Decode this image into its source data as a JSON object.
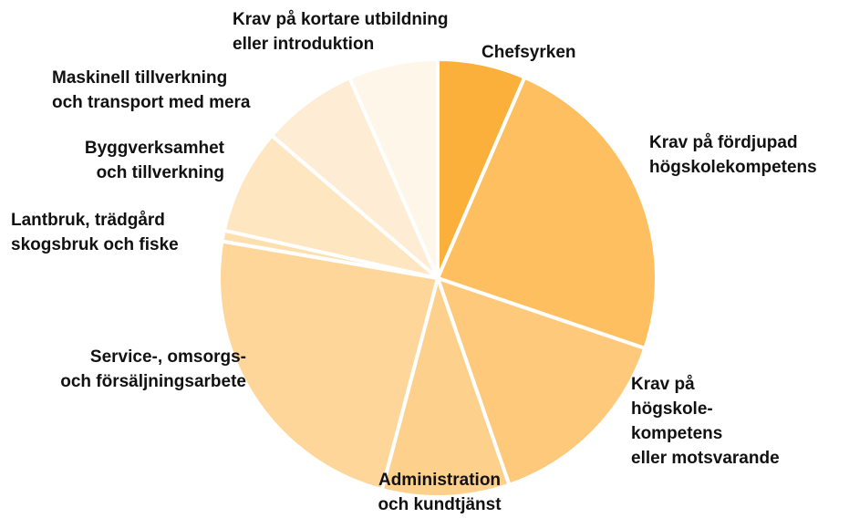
{
  "chart_data": {
    "type": "pie",
    "categories": [
      "Chefsyrken",
      "Krav på fördjupad\nhögskolekompetens",
      "Krav på\nhögskole-\nkompetens\neller motsvarande",
      "Administration\noch kundtjänst",
      "Service-, omsorgs-\noch försäljningsarbete",
      "Lantbruk, trädgård\nskogsbruk och fiske",
      "Byggverksamhet\noch tillverkning",
      "Maskinell tillverkning\noch transport med mera",
      "Krav på kortare utbildning\neller introduktion"
    ],
    "values": [
      6.5,
      23.7,
      14.5,
      9.4,
      23.6,
      0.8,
      7.8,
      7.1,
      6.6
    ],
    "colors": [
      "#fbb03b",
      "#fdbf5f",
      "#fec97a",
      "#fdd08c",
      "#fed69a",
      "#fedfae",
      "#fee6c1",
      "#feedd4",
      "#fff6ea"
    ]
  }
}
